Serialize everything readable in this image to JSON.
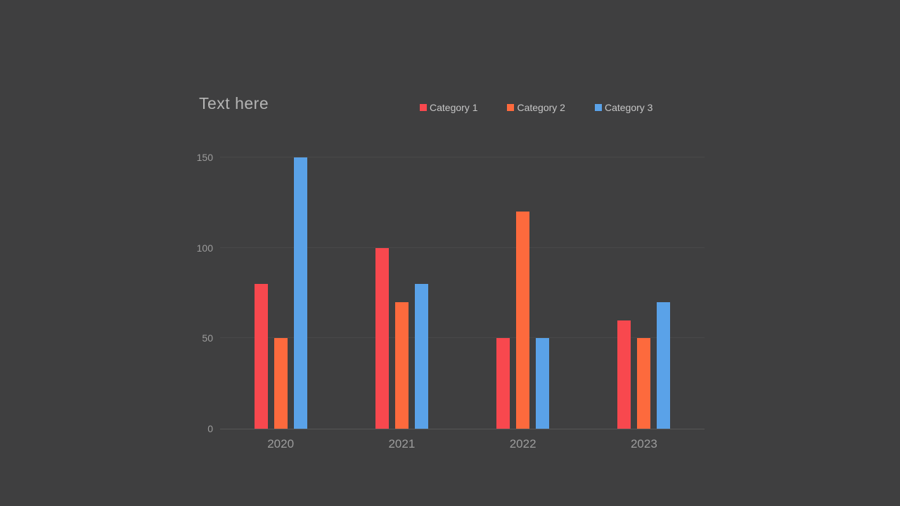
{
  "slide": {
    "background": "#3f3f40"
  },
  "theme": {
    "title_color": "#b4b4b4",
    "legend_text_color": "#c6c6c6",
    "tick_text_color": "#9c9c9c",
    "gridline_color": "#494949",
    "axis_line_color": "#575757"
  },
  "chart_data": {
    "type": "bar",
    "title": "Text here",
    "categories": [
      "2020",
      "2021",
      "2022",
      "2023"
    ],
    "series": [
      {
        "name": "Category 1",
        "color": "#f8484e",
        "values": [
          80,
          100,
          50,
          60
        ]
      },
      {
        "name": "Category 2",
        "color": "#fd6a3d",
        "values": [
          50,
          70,
          120,
          50
        ]
      },
      {
        "name": "Category 3",
        "color": "#5aa2e8",
        "values": [
          150,
          80,
          50,
          70
        ]
      }
    ],
    "yticks": [
      0,
      50,
      100,
      150
    ],
    "ylim": [
      0,
      150
    ],
    "xlabel": "",
    "ylabel": "",
    "grid": true,
    "legend_position": "top-right"
  }
}
